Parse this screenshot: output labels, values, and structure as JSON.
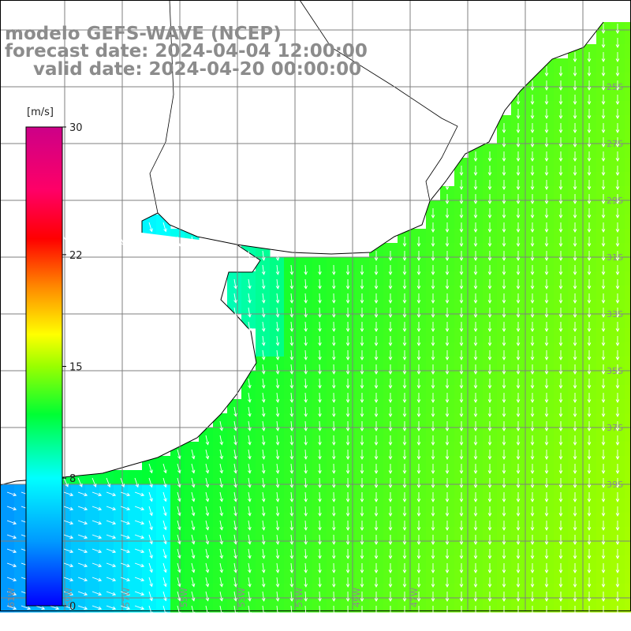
{
  "title": {
    "model": "modelo GEFS-WAVE (NCEP)",
    "forecast": "forecast date: 2024-04-04 12:00:00",
    "valid": "valid date: 2024-04-20 00:00:00"
  },
  "colorbar": {
    "unit": "[m/s]",
    "ticks": [
      "30",
      "22",
      "15",
      "8",
      "0"
    ],
    "tick_values": [
      30,
      22,
      15,
      8,
      0
    ],
    "range": [
      0,
      30
    ],
    "stops": [
      {
        "v": 0,
        "c": "#0000ff"
      },
      {
        "v": 4,
        "c": "#0099ff"
      },
      {
        "v": 8,
        "c": "#00ffff"
      },
      {
        "v": 12,
        "c": "#00ff33"
      },
      {
        "v": 15,
        "c": "#99ff00"
      },
      {
        "v": 17,
        "c": "#ffff00"
      },
      {
        "v": 20,
        "c": "#ff8800"
      },
      {
        "v": 23,
        "c": "#ff0000"
      },
      {
        "v": 26,
        "c": "#ff0066"
      },
      {
        "v": 30,
        "c": "#cc0088"
      }
    ]
  },
  "map": {
    "variable": "wind speed with direction arrows",
    "lon_labels": [
      "61W",
      "59W",
      "57W",
      "55W",
      "53W",
      "51W",
      "49W",
      "47W"
    ],
    "lat_labels": [
      "25S",
      "27S",
      "29S",
      "31S",
      "33S",
      "35S",
      "37S",
      "39S"
    ],
    "colors": {
      "land": "#ffffff",
      "coast": "#000000",
      "grid": "#7f7f7f",
      "arrow": "#ffffff"
    }
  }
}
